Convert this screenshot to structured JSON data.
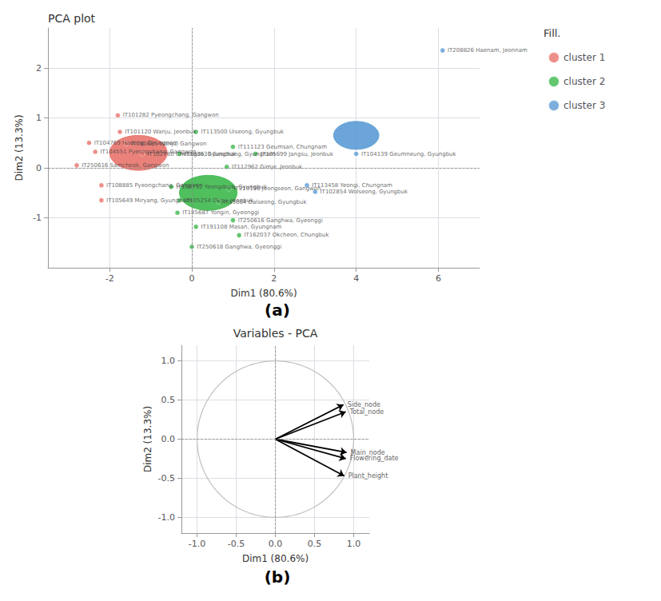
{
  "chart_data": [
    {
      "type": "scatter",
      "title": "PCA plot",
      "xlabel": "Dim1 (80.6%)",
      "ylabel": "Dim2 (13.3%)",
      "label": "(a)",
      "legend": "right",
      "legend_title": "Fill.",
      "grid": true,
      "xlim": [
        -3.5,
        7.0
      ],
      "ylim": [
        -2.0,
        2.8
      ],
      "xticks": [
        -2,
        0,
        2,
        4,
        6
      ],
      "yticks": [
        -1,
        0,
        1,
        2
      ],
      "hlines": [
        0
      ],
      "vlines": [
        0
      ],
      "series": [
        {
          "name": "cluster 1",
          "color": "#E8736B",
          "x": [
            -1.8,
            -1.75,
            -2.5,
            -1.6,
            -2.35,
            -1.2,
            -2.8,
            -2.2,
            -2.2
          ],
          "y": [
            1.05,
            0.72,
            0.5,
            0.48,
            0.32,
            0.28,
            0.05,
            -0.35,
            -0.65
          ],
          "labels": [
            "IT101282 Pyeongchang, Gangwon",
            "IT101120 Wanju, Jeonbuk",
            "IT104769 Hadong, Gyungnam",
            "IT185685 Wonju, Gangwon",
            "IT104551 Pyeongchang, Gangwon",
            "IT102780 Cheongdo, Gyungbuk",
            "IT250616 Samcheok, Gangwon",
            "IT108885 Pyeongchang, Gangwon",
            "IT105649 Miryang, Gyungnam"
          ],
          "regions": [
            {
              "x": -1.3,
              "y": 0.3,
              "rx": 0.7,
              "ry": 0.35
            }
          ]
        },
        {
          "name": "cluster 2",
          "color": "#3DB84C",
          "x": [
            0.1,
            1.0,
            -0.3,
            1.55,
            0.85,
            -0.5,
            0.9,
            -0.3,
            0.65,
            -0.35,
            1.0,
            0.1,
            1.15,
            0.0
          ],
          "y": [
            0.72,
            0.42,
            0.28,
            0.28,
            0.02,
            -0.38,
            -0.42,
            -0.65,
            -0.68,
            -0.9,
            -1.05,
            -1.18,
            -1.35,
            -1.58
          ],
          "labels": [
            "IT113500 Uiseong, Gyungbuk",
            "IT111123 Geumsan, Chungnam",
            "IT183633 Geochang, Gyungnam",
            "IT105699 Jangsu, Jeonbuk",
            "IT112962 Gimje, Jeonbuk",
            "IT108752 Yeongdeok, Gyungbuk",
            "IT210198 Jeongseon, Gangwon",
            "IT105254 Okgu, Jeonbuk",
            "IT13084 Dalseong, Gyungbuk",
            "IT185687 Yongin, Gyeonggi",
            "IT250616 Ganghwa, Gyeonggi",
            "IT191108 Masan, Gyungnam",
            "IT162037 Okcheon, Chungbuk",
            "IT250618 Ganghwa, Gyeonggi"
          ],
          "regions": [
            {
              "x": 0.4,
              "y": -0.5,
              "rx": 0.7,
              "ry": 0.35
            }
          ]
        },
        {
          "name": "cluster 3",
          "color": "#5B9BD5",
          "x": [
            6.1,
            4.0,
            2.8,
            3.0
          ],
          "y": [
            2.35,
            0.28,
            -0.35,
            -0.48
          ],
          "labels": [
            "IT208826 Haenam, Jeonnam",
            "IT104139 Geumneung, Gyungbuk",
            "IT113458 Yeongi, Chungnam",
            "IT102854 Wolseong, Gyungbuk"
          ],
          "regions": [
            {
              "x": 4.0,
              "y": 0.65,
              "rx": 0.55,
              "ry": 0.28
            }
          ]
        }
      ]
    },
    {
      "type": "biplot",
      "title": "Variables - PCA",
      "xlabel": "Dim1 (80.6%)",
      "ylabel": "Dim2 (13.3%)",
      "label": "(b)",
      "grid": true,
      "xlim": [
        -1.2,
        1.2
      ],
      "ylim": [
        -1.2,
        1.2
      ],
      "xticks": [
        {
          "value": -1.0,
          "label": "-1.0"
        },
        {
          "value": -0.5,
          "label": "-0.5"
        },
        {
          "value": 0.0,
          "label": "0.0"
        },
        {
          "value": 0.5,
          "label": "0.5"
        },
        {
          "value": 1.0,
          "label": "1.0"
        }
      ],
      "yticks": [
        {
          "value": -1.0,
          "label": "-1.0"
        },
        {
          "value": -0.5,
          "label": "-0.5"
        },
        {
          "value": 0.0,
          "label": "0.0"
        },
        {
          "value": 0.5,
          "label": "0.5"
        },
        {
          "value": 1.0,
          "label": "1.0"
        }
      ],
      "hlines": [
        0
      ],
      "vlines": [
        0
      ],
      "circles": [
        {
          "x": 0,
          "y": 0,
          "r": 1
        }
      ],
      "arrow_origin": [
        0,
        0
      ],
      "arrows": [
        {
          "name": "Side_node",
          "x": 0.87,
          "y": 0.44
        },
        {
          "name": "Total_node",
          "x": 0.9,
          "y": 0.35
        },
        {
          "name": "Main_node",
          "x": 0.91,
          "y": -0.17
        },
        {
          "name": "Flowering_date",
          "x": 0.9,
          "y": -0.25
        },
        {
          "name": "Plant_height",
          "x": 0.88,
          "y": -0.47
        }
      ]
    }
  ]
}
